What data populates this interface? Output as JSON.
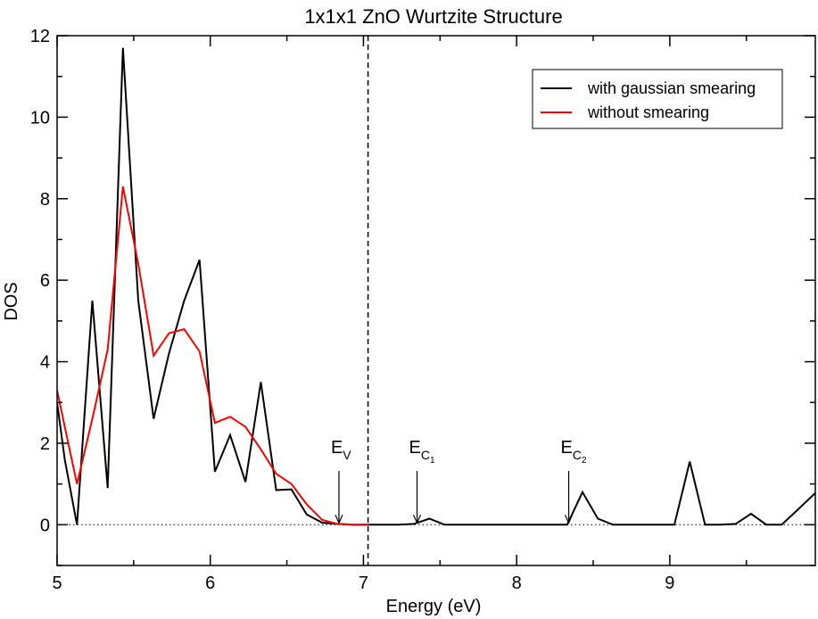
{
  "chart_data": {
    "type": "line",
    "title": "1x1x1 ZnO Wurtzite Structure",
    "xlabel": "Energy (eV)",
    "ylabel": "DOS",
    "xlim": [
      5,
      9.95
    ],
    "ylim": [
      -1,
      12
    ],
    "xticks": [
      5,
      6,
      7,
      8,
      9
    ],
    "yticks": [
      0,
      2,
      4,
      6,
      8,
      10,
      12
    ],
    "grid": false,
    "legend_position": "top-right",
    "series": [
      {
        "name": "with gaussian smearing",
        "color": "#000000",
        "x": [
          5.0,
          5.05,
          5.13,
          5.23,
          5.33,
          5.43,
          5.53,
          5.63,
          5.73,
          5.83,
          5.93,
          6.03,
          6.13,
          6.23,
          6.33,
          6.43,
          6.53,
          6.63,
          6.73,
          6.83,
          6.93,
          7.03,
          7.13,
          7.23,
          7.33,
          7.43,
          7.53,
          7.63,
          7.73,
          7.83,
          7.93,
          8.03,
          8.13,
          8.23,
          8.33,
          8.43,
          8.53,
          8.63,
          8.73,
          8.83,
          8.93,
          9.03,
          9.13,
          9.23,
          9.33,
          9.43,
          9.53,
          9.63,
          9.73,
          9.83,
          9.95
        ],
        "y": [
          3.0,
          1.6,
          0.0,
          5.5,
          0.9,
          11.7,
          5.5,
          2.6,
          4.2,
          5.5,
          6.5,
          1.3,
          2.2,
          1.05,
          3.5,
          0.85,
          0.87,
          0.25,
          0.05,
          0.02,
          0.0,
          0.0,
          0.0,
          0.0,
          0.02,
          0.15,
          0.0,
          0.0,
          0.0,
          0.0,
          0.0,
          0.0,
          0.0,
          0.0,
          0.0,
          0.8,
          0.15,
          0.0,
          0.0,
          0.0,
          0.0,
          0.0,
          1.55,
          0.0,
          0.0,
          0.02,
          0.27,
          0.0,
          0.0,
          0.35,
          0.78
        ]
      },
      {
        "name": "without smearing",
        "color": "#ff0000",
        "x": [
          5.0,
          5.05,
          5.13,
          5.23,
          5.33,
          5.43,
          5.53,
          5.63,
          5.73,
          5.83,
          5.93,
          6.03,
          6.13,
          6.23,
          6.33,
          6.43,
          6.53,
          6.63,
          6.73,
          6.83,
          6.93,
          7.03
        ],
        "y": [
          3.3,
          2.4,
          1.0,
          2.6,
          4.3,
          8.3,
          6.4,
          4.15,
          4.7,
          4.8,
          4.25,
          2.5,
          2.65,
          2.4,
          1.85,
          1.25,
          1.0,
          0.5,
          0.12,
          0.02,
          0.0,
          0.0
        ]
      }
    ],
    "reference_lines": {
      "zero_line_y": 0,
      "vertical_dashed_x": 7.03
    },
    "annotations": [
      {
        "main": "E",
        "sub": "V",
        "subsub": "",
        "x": 6.84,
        "y": 0.0
      },
      {
        "main": "E",
        "sub": "C",
        "subsub": "1",
        "x": 7.35,
        "y": 0.0
      },
      {
        "main": "E",
        "sub": "C",
        "subsub": "2",
        "x": 8.34,
        "y": 0.0
      }
    ]
  }
}
